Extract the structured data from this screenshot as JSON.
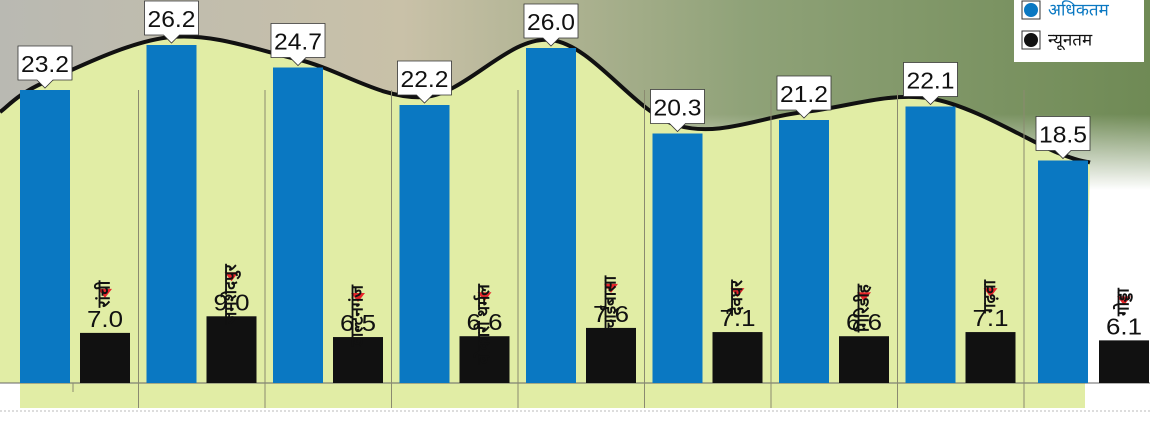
{
  "chart_data": {
    "type": "bar",
    "categories": [
      "रांची",
      "जमशेदपुर",
      "डाल्टनगंज",
      "बोकारो थर्मल",
      "चाईबासा",
      "देवघर",
      "गिरिडीह",
      "गढ़वा",
      "गोड्डा"
    ],
    "series": [
      {
        "name": "अधिकतम",
        "color": "#0a78c2",
        "values": [
          23.2,
          26.2,
          24.7,
          22.2,
          26.0,
          20.3,
          21.2,
          22.1,
          18.5
        ],
        "value_labels": [
          "23.2",
          "26.2",
          "24.7",
          "22.2",
          "26.0",
          "20.3",
          "21.2",
          "22.1",
          "18.5"
        ]
      },
      {
        "name": "न्यूनतम",
        "color": "#111111",
        "values": [
          7.0,
          9.0,
          6.5,
          6.6,
          7.6,
          7.1,
          6.6,
          7.1,
          6.1
        ],
        "value_labels": [
          "7.0",
          "9.0",
          "6.5",
          "6.6",
          "7.6",
          "7.1",
          "6.6",
          "7.1",
          "6.1"
        ]
      }
    ]
  }
}
